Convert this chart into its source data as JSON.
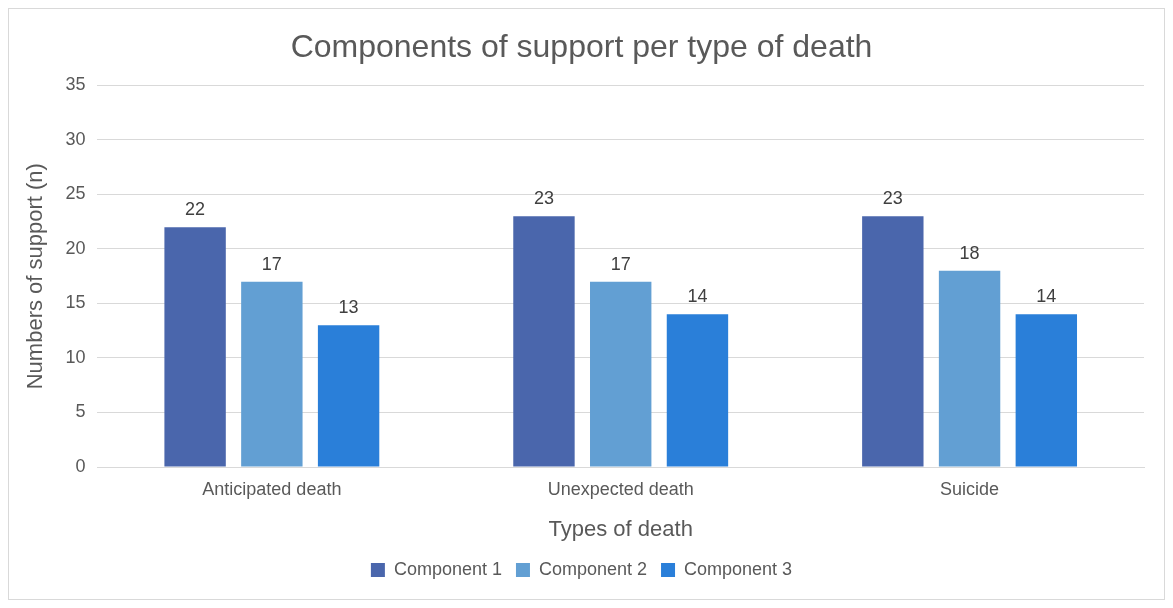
{
  "chart_data": {
    "type": "bar",
    "title": "Components of support per type of death",
    "xlabel": "Types of death",
    "ylabel": "Numbers of support (n)",
    "categories": [
      "Anticipated death",
      "Unexpected death",
      "Suicide"
    ],
    "series": [
      {
        "name": "Component 1",
        "color": "#4a66ac",
        "values": [
          22,
          23,
          23
        ]
      },
      {
        "name": "Component 2",
        "color": "#629fd3",
        "values": [
          17,
          17,
          18
        ]
      },
      {
        "name": "Component 3",
        "color": "#2a7fd9",
        "values": [
          13,
          14,
          14
        ]
      }
    ],
    "ylim": [
      0,
      35
    ],
    "yticks": [
      0,
      5,
      10,
      15,
      20,
      25,
      30,
      35
    ],
    "grid": "y",
    "legend": "bottom",
    "data_labels": true
  }
}
